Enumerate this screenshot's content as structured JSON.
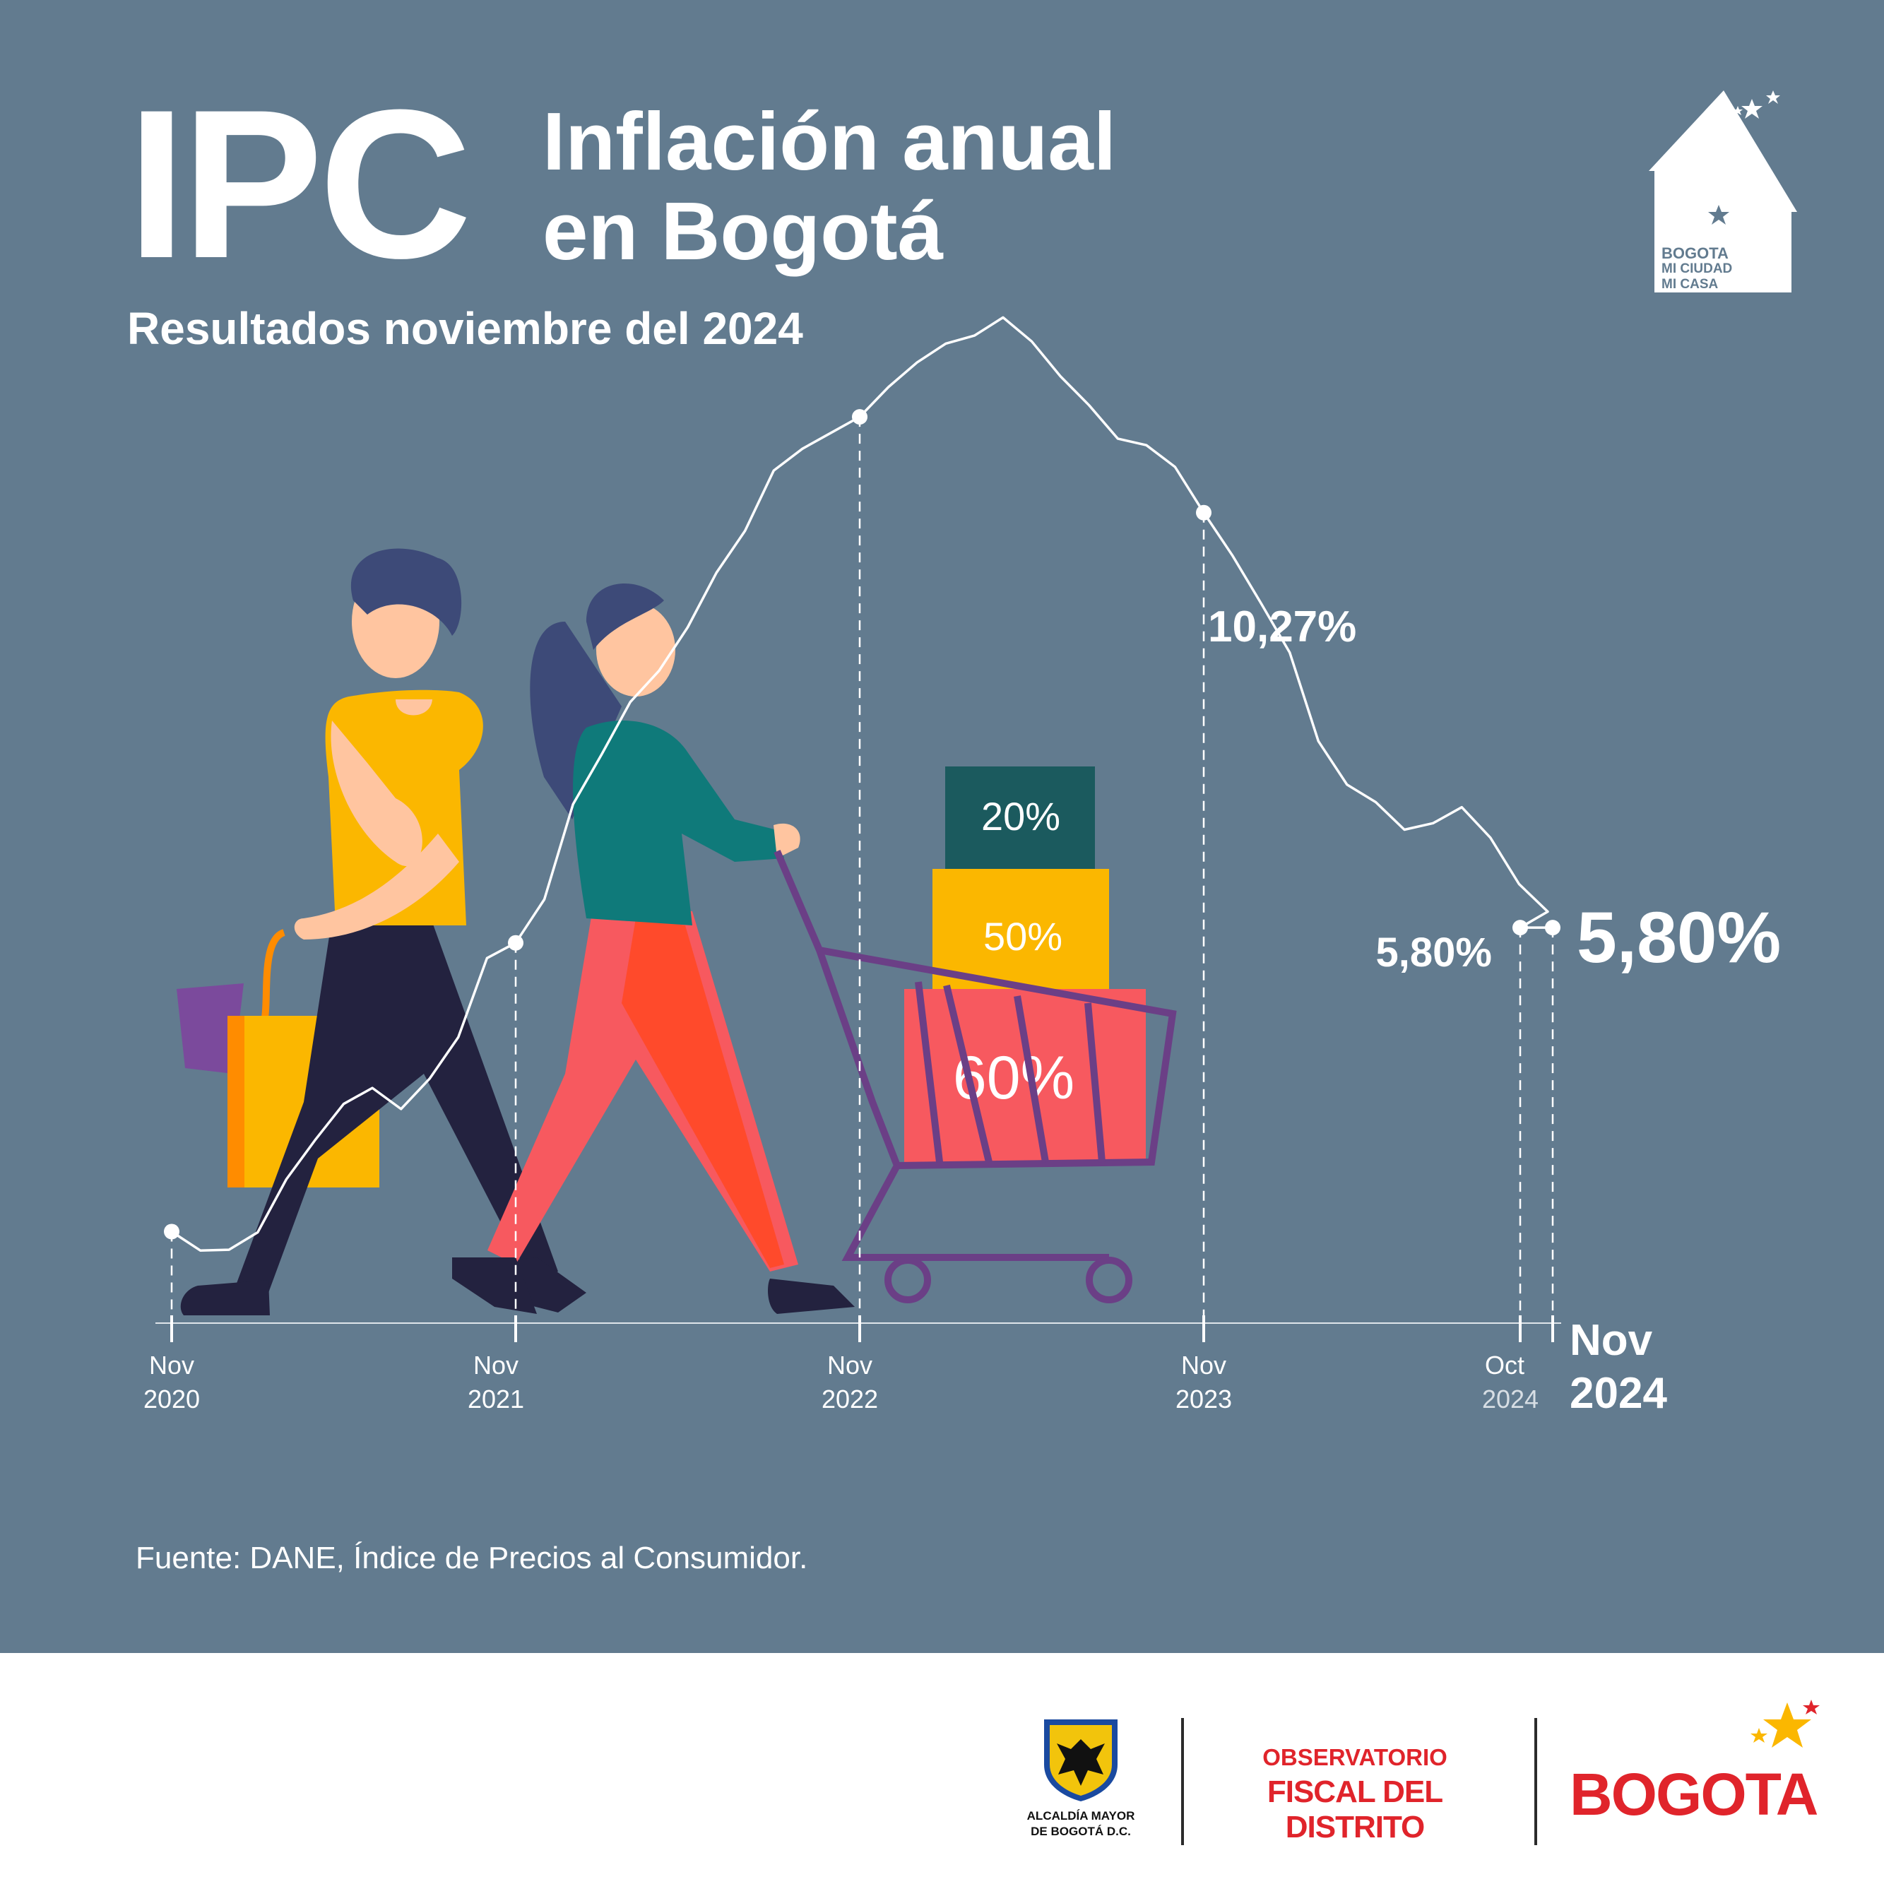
{
  "header": {
    "big_title": "IPC",
    "title_line1": "Inflación anual",
    "title_line2": "en Bogotá",
    "subtitle": "Resultados noviembre del 2024"
  },
  "source_note": "Fuente:  DANE, Índice de Precios al Consumidor.",
  "colors": {
    "panel_background": "#627b8f",
    "line": "#ffffff",
    "box_teal": "#1b5a5e",
    "box_yellow": "#fbb700",
    "box_red": "#f7595f",
    "cart": "#6b3f86",
    "brand_red": "#e0242b"
  },
  "chart_data": {
    "type": "line",
    "title": "Inflación anual en Bogotá",
    "series": [
      {
        "values": [
          1.61,
          1.35,
          1.36,
          1.6,
          2.33,
          2.87,
          3.37,
          3.59,
          3.3,
          3.72,
          4.29,
          5.38,
          5.59,
          6.19,
          7.5,
          8.19,
          8.91,
          9.34,
          9.94,
          10.69,
          11.27,
          12.1,
          12.4,
          12.62,
          12.84,
          13.25,
          13.59,
          13.85,
          13.96,
          14.21,
          13.88,
          13.4,
          13.0,
          12.54,
          12.45,
          12.15,
          11.52,
          10.93,
          10.27,
          9.59,
          8.37,
          7.77,
          7.53,
          7.15,
          7.24,
          7.46,
          7.04,
          6.4,
          6.02,
          5.8,
          5.8
        ]
      }
    ],
    "x_ticks": [
      {
        "month": "Nov",
        "year": "2020"
      },
      {
        "month": "Nov",
        "year": "2021"
      },
      {
        "month": "Nov",
        "year": "2022"
      },
      {
        "month": "Nov",
        "year": "2023"
      },
      {
        "month": "Oct",
        "year": "2024"
      },
      {
        "month": "Nov",
        "year": "2024"
      }
    ],
    "annotations": [
      {
        "label": "10,27%",
        "value": 10.27
      },
      {
        "label": "5,80%",
        "value": 5.8
      },
      {
        "label": "5,80%",
        "value": 5.8
      }
    ]
  },
  "illustration": {
    "box_labels": [
      "20%",
      "50%",
      "60%"
    ]
  },
  "footer": {
    "alcaldia_line1": "ALCALDÍA MAYOR",
    "alcaldia_line2": "DE BOGOTÁ D.C.",
    "observatorio_line1": "OBSERVATORIO",
    "observatorio_line2": "FISCAL DEL DISTRITO",
    "bogota_logo": "BOGOTA",
    "house_logo": [
      "BOGOTA",
      "MI CIUDAD",
      "MI CASA"
    ]
  }
}
